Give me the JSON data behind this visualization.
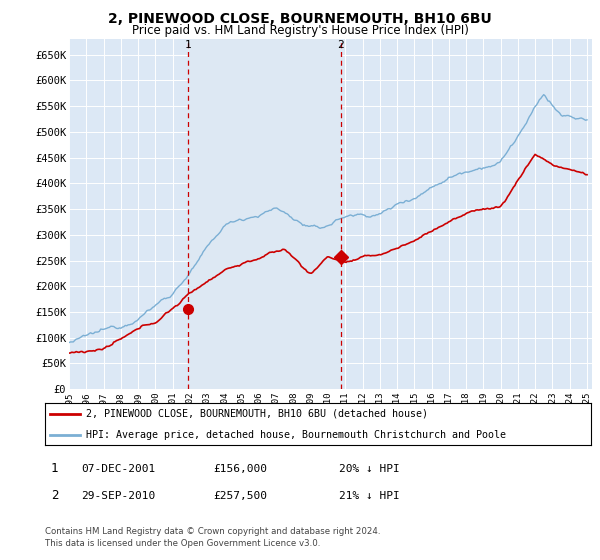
{
  "title": "2, PINEWOOD CLOSE, BOURNEMOUTH, BH10 6BU",
  "subtitle": "Price paid vs. HM Land Registry's House Price Index (HPI)",
  "legend_line1": "2, PINEWOOD CLOSE, BOURNEMOUTH, BH10 6BU (detached house)",
  "legend_line2": "HPI: Average price, detached house, Bournemouth Christchurch and Poole",
  "table_rows": [
    {
      "num": "1",
      "date": "07-DEC-2001",
      "price": "£156,000",
      "hpi": "20% ↓ HPI"
    },
    {
      "num": "2",
      "date": "29-SEP-2010",
      "price": "£257,500",
      "hpi": "21% ↓ HPI"
    }
  ],
  "footnote1": "Contains HM Land Registry data © Crown copyright and database right 2024.",
  "footnote2": "This data is licensed under the Open Government Licence v3.0.",
  "hpi_color": "#7bafd4",
  "price_color": "#cc0000",
  "shade_color": "#dde8f3",
  "marker1_year": 2001.92,
  "marker2_year": 2010.75,
  "marker1_value": 156000,
  "marker2_value": 257500,
  "ylim": [
    0,
    680000
  ],
  "xlim_start": 1995,
  "xlim_end": 2025.3,
  "yticks": [
    0,
    50000,
    100000,
    150000,
    200000,
    250000,
    300000,
    350000,
    400000,
    450000,
    500000,
    550000,
    600000,
    650000
  ],
  "ytick_labels": [
    "£0",
    "£50K",
    "£100K",
    "£150K",
    "£200K",
    "£250K",
    "£300K",
    "£350K",
    "£400K",
    "£450K",
    "£500K",
    "£550K",
    "£600K",
    "£650K"
  ],
  "xtick_labels": [
    "1995",
    "1996",
    "1997",
    "1998",
    "1999",
    "2000",
    "2001",
    "2002",
    "2003",
    "2004",
    "2005",
    "2006",
    "2007",
    "2008",
    "2009",
    "2010",
    "2011",
    "2012",
    "2013",
    "2014",
    "2015",
    "2016",
    "2017",
    "2018",
    "2019",
    "2020",
    "2021",
    "2022",
    "2023",
    "2024",
    "2025"
  ],
  "background_color": "#ffffff",
  "plot_bg": "#dce8f5"
}
